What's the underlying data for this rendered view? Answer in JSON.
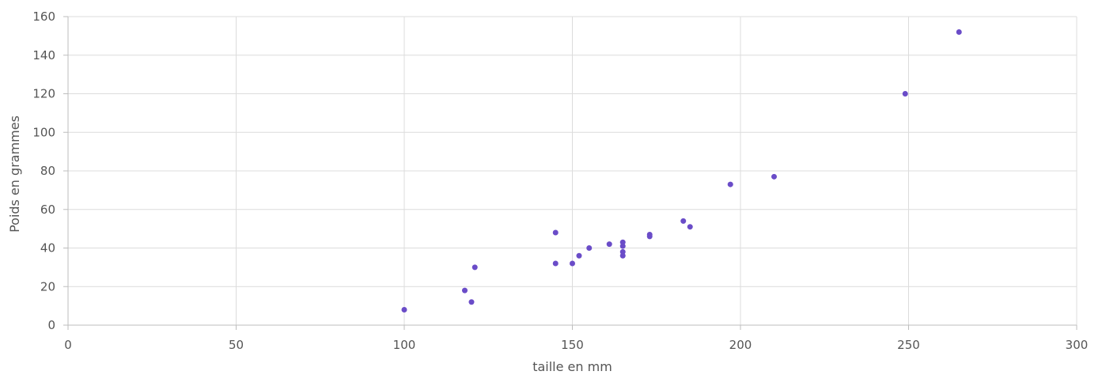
{
  "chart_data": {
    "type": "scatter",
    "title": "",
    "xlabel": "taille en mm",
    "ylabel": "Poids en grammes",
    "xlim": [
      0,
      300
    ],
    "ylim": [
      0,
      160
    ],
    "xticks": [
      0,
      50,
      100,
      150,
      200,
      250,
      300
    ],
    "yticks": [
      0,
      20,
      40,
      60,
      80,
      100,
      120,
      140,
      160
    ],
    "grid": true,
    "legend": "none",
    "point_color": "#6a4cc8",
    "series": [
      {
        "points": [
          {
            "x": 100,
            "y": 8
          },
          {
            "x": 118,
            "y": 18
          },
          {
            "x": 120,
            "y": 12
          },
          {
            "x": 121,
            "y": 30
          },
          {
            "x": 145,
            "y": 48
          },
          {
            "x": 145,
            "y": 32
          },
          {
            "x": 150,
            "y": 32
          },
          {
            "x": 152,
            "y": 36
          },
          {
            "x": 155,
            "y": 40
          },
          {
            "x": 161,
            "y": 42
          },
          {
            "x": 165,
            "y": 43
          },
          {
            "x": 165,
            "y": 41
          },
          {
            "x": 165,
            "y": 38
          },
          {
            "x": 165,
            "y": 36
          },
          {
            "x": 173,
            "y": 47
          },
          {
            "x": 173,
            "y": 46
          },
          {
            "x": 183,
            "y": 54
          },
          {
            "x": 185,
            "y": 51
          },
          {
            "x": 197,
            "y": 73
          },
          {
            "x": 210,
            "y": 77
          },
          {
            "x": 249,
            "y": 120
          },
          {
            "x": 265,
            "y": 152
          }
        ]
      }
    ]
  }
}
